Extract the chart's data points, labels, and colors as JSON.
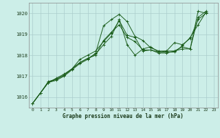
{
  "title": "Graphe pression niveau de la mer (hPa)",
  "background_color": "#cceee8",
  "grid_color": "#aacccc",
  "line_color": "#1a5c1a",
  "xlim": [
    -0.5,
    23.5
  ],
  "ylim": [
    1015.5,
    1020.5
  ],
  "yticks": [
    1016,
    1017,
    1018,
    1019,
    1020
  ],
  "xticks": [
    0,
    1,
    2,
    3,
    4,
    5,
    6,
    7,
    8,
    9,
    10,
    11,
    12,
    13,
    14,
    15,
    16,
    17,
    18,
    19,
    20,
    21,
    22,
    23
  ],
  "series": [
    [
      1015.7,
      1016.2,
      1016.7,
      1016.8,
      1017.0,
      1017.3,
      1017.6,
      1017.8,
      1018.1,
      1019.4,
      1019.7,
      1019.95,
      1019.6,
      1018.9,
      1018.7,
      1018.35,
      1018.2,
      1018.2,
      1018.2,
      1018.3,
      1018.3,
      1020.1,
      1020.0,
      null
    ],
    [
      1015.7,
      1016.2,
      1016.75,
      1016.85,
      1017.05,
      1017.35,
      1017.65,
      1017.85,
      1018.05,
      1018.5,
      1018.9,
      1019.7,
      1018.5,
      1018.0,
      1018.3,
      1018.4,
      1018.15,
      1018.2,
      1018.6,
      1018.5,
      1018.8,
      1019.7,
      1020.0,
      null
    ],
    [
      1015.7,
      1016.2,
      1016.7,
      1016.9,
      1017.1,
      1017.35,
      1017.8,
      1018.0,
      1018.2,
      1018.65,
      1019.05,
      1019.65,
      1018.95,
      1018.85,
      1018.2,
      1018.25,
      1018.1,
      1018.1,
      1018.2,
      1018.4,
      1018.3,
      1019.8,
      1020.1,
      null
    ],
    [
      1015.7,
      1016.2,
      1016.7,
      1016.85,
      1017.05,
      1017.35,
      1017.65,
      1017.85,
      1018.0,
      1018.7,
      1019.1,
      1019.45,
      1018.85,
      1018.65,
      1018.25,
      1018.25,
      1018.15,
      1018.15,
      1018.15,
      1018.45,
      1018.85,
      1019.45,
      1020.05,
      null
    ]
  ],
  "fig_width": 3.2,
  "fig_height": 2.0,
  "dpi": 100
}
